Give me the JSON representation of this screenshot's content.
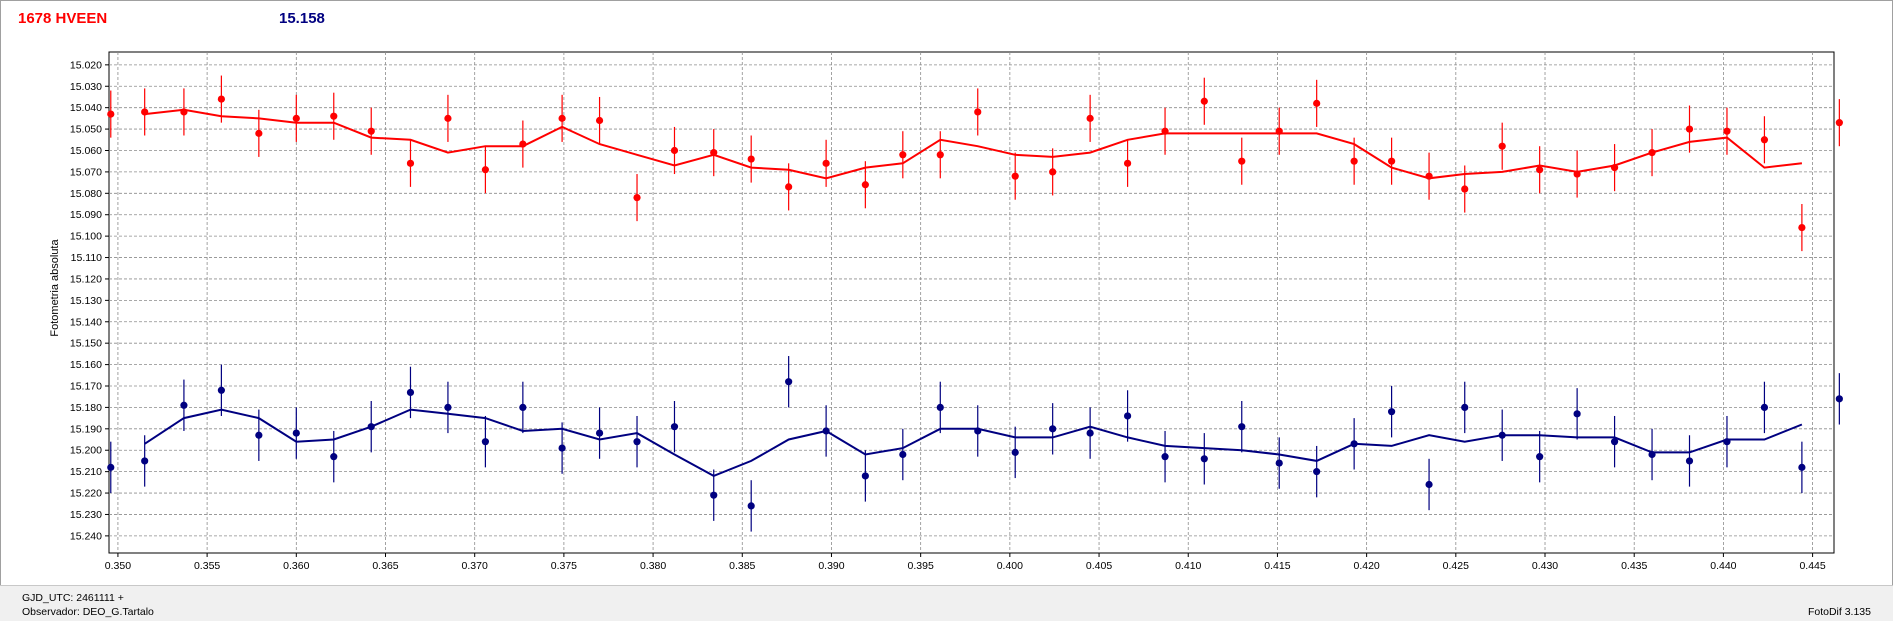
{
  "header": {
    "object_name": "1678 HVEEN",
    "magnitude": "15.158",
    "object_color": "#ff0000",
    "magnitude_color": "#000080"
  },
  "footer": {
    "gjd": "GJD_UTC: 2461111 +",
    "observer": "Observador: DEO_G.Tartalo",
    "software": "FotoDif 3.135"
  },
  "chart_data": {
    "type": "scatter",
    "title": "",
    "xlabel": "",
    "ylabel": "Fotometria absoluta",
    "xlim": [
      0.3495,
      0.4462
    ],
    "ylim": [
      15.014,
      15.248
    ],
    "y_inverted": true,
    "grid": true,
    "x_ticks": [
      "0.350",
      "0.355",
      "0.360",
      "0.365",
      "0.370",
      "0.375",
      "0.380",
      "0.385",
      "0.390",
      "0.395",
      "0.400",
      "0.405",
      "0.410",
      "0.415",
      "0.420",
      "0.425",
      "0.430",
      "0.435",
      "0.440",
      "0.445"
    ],
    "y_ticks": [
      "15.020",
      "15.030",
      "15.040",
      "15.050",
      "15.060",
      "15.070",
      "15.080",
      "15.090",
      "15.100",
      "15.110",
      "15.120",
      "15.130",
      "15.140",
      "15.150",
      "15.160",
      "15.170",
      "15.180",
      "15.190",
      "15.200",
      "15.210",
      "15.220",
      "15.230",
      "15.240"
    ],
    "series": [
      {
        "color": "#ff0000",
        "points": [
          [
            0.3496,
            15.043
          ],
          [
            0.3515,
            15.042
          ],
          [
            0.3537,
            15.042
          ],
          [
            0.3558,
            15.036
          ],
          [
            0.3579,
            15.052
          ],
          [
            0.36,
            15.045
          ],
          [
            0.3621,
            15.044
          ],
          [
            0.3642,
            15.051
          ],
          [
            0.3664,
            15.066
          ],
          [
            0.3685,
            15.045
          ],
          [
            0.3706,
            15.069
          ],
          [
            0.3727,
            15.057
          ],
          [
            0.3749,
            15.045
          ],
          [
            0.377,
            15.046
          ],
          [
            0.3791,
            15.082
          ],
          [
            0.3812,
            15.06
          ],
          [
            0.3834,
            15.061
          ],
          [
            0.3855,
            15.064
          ],
          [
            0.3876,
            15.077
          ],
          [
            0.3897,
            15.066
          ],
          [
            0.3919,
            15.076
          ],
          [
            0.394,
            15.062
          ],
          [
            0.3961,
            15.062
          ],
          [
            0.3982,
            15.042
          ],
          [
            0.4003,
            15.072
          ],
          [
            0.4024,
            15.07
          ],
          [
            0.4045,
            15.045
          ],
          [
            0.4066,
            15.066
          ],
          [
            0.4087,
            15.051
          ],
          [
            0.4109,
            15.037
          ],
          [
            0.413,
            15.065
          ],
          [
            0.4151,
            15.051
          ],
          [
            0.4172,
            15.038
          ],
          [
            0.4193,
            15.065
          ],
          [
            0.4214,
            15.065
          ],
          [
            0.4235,
            15.072
          ],
          [
            0.4255,
            15.078
          ],
          [
            0.4276,
            15.058
          ],
          [
            0.4297,
            15.069
          ],
          [
            0.4318,
            15.071
          ],
          [
            0.4339,
            15.068
          ],
          [
            0.436,
            15.061
          ],
          [
            0.4381,
            15.05
          ],
          [
            0.4402,
            15.051
          ],
          [
            0.4423,
            15.055
          ],
          [
            0.4444,
            15.096
          ],
          [
            0.4465,
            15.047
          ]
        ],
        "err": 0.011,
        "trend": [
          [
            0.3515,
            15.043
          ],
          [
            0.3537,
            15.041
          ],
          [
            0.3558,
            15.044
          ],
          [
            0.3579,
            15.045
          ],
          [
            0.36,
            15.047
          ],
          [
            0.3621,
            15.047
          ],
          [
            0.3642,
            15.054
          ],
          [
            0.3664,
            15.055
          ],
          [
            0.3685,
            15.061
          ],
          [
            0.3706,
            15.058
          ],
          [
            0.3727,
            15.058
          ],
          [
            0.3749,
            15.049
          ],
          [
            0.377,
            15.057
          ],
          [
            0.3791,
            15.062
          ],
          [
            0.3812,
            15.067
          ],
          [
            0.3834,
            15.062
          ],
          [
            0.3855,
            15.068
          ],
          [
            0.3876,
            15.069
          ],
          [
            0.3897,
            15.073
          ],
          [
            0.3919,
            15.068
          ],
          [
            0.394,
            15.066
          ],
          [
            0.3961,
            15.055
          ],
          [
            0.3982,
            15.058
          ],
          [
            0.4003,
            15.062
          ],
          [
            0.4024,
            15.063
          ],
          [
            0.4045,
            15.061
          ],
          [
            0.4066,
            15.055
          ],
          [
            0.4087,
            15.052
          ],
          [
            0.4109,
            15.052
          ],
          [
            0.413,
            15.052
          ],
          [
            0.4151,
            15.052
          ],
          [
            0.4172,
            15.052
          ],
          [
            0.4193,
            15.057
          ],
          [
            0.4214,
            15.068
          ],
          [
            0.4235,
            15.073
          ],
          [
            0.4255,
            15.071
          ],
          [
            0.4276,
            15.07
          ],
          [
            0.4297,
            15.067
          ],
          [
            0.4318,
            15.07
          ],
          [
            0.4339,
            15.067
          ],
          [
            0.436,
            15.061
          ],
          [
            0.4381,
            15.056
          ],
          [
            0.4402,
            15.054
          ],
          [
            0.4423,
            15.068
          ],
          [
            0.4444,
            15.066
          ]
        ]
      },
      {
        "color": "#000080",
        "points": [
          [
            0.3496,
            15.208
          ],
          [
            0.3515,
            15.205
          ],
          [
            0.3537,
            15.179
          ],
          [
            0.3558,
            15.172
          ],
          [
            0.3579,
            15.193
          ],
          [
            0.36,
            15.192
          ],
          [
            0.3621,
            15.203
          ],
          [
            0.3642,
            15.189
          ],
          [
            0.3664,
            15.173
          ],
          [
            0.3685,
            15.18
          ],
          [
            0.3706,
            15.196
          ],
          [
            0.3727,
            15.18
          ],
          [
            0.3749,
            15.199
          ],
          [
            0.377,
            15.192
          ],
          [
            0.3791,
            15.196
          ],
          [
            0.3812,
            15.189
          ],
          [
            0.3834,
            15.221
          ],
          [
            0.3855,
            15.226
          ],
          [
            0.3876,
            15.168
          ],
          [
            0.3897,
            15.191
          ],
          [
            0.3919,
            15.212
          ],
          [
            0.394,
            15.202
          ],
          [
            0.3961,
            15.18
          ],
          [
            0.3982,
            15.191
          ],
          [
            0.4003,
            15.201
          ],
          [
            0.4024,
            15.19
          ],
          [
            0.4045,
            15.192
          ],
          [
            0.4066,
            15.184
          ],
          [
            0.4087,
            15.203
          ],
          [
            0.4109,
            15.204
          ],
          [
            0.413,
            15.189
          ],
          [
            0.4151,
            15.206
          ],
          [
            0.4172,
            15.21
          ],
          [
            0.4193,
            15.197
          ],
          [
            0.4214,
            15.182
          ],
          [
            0.4235,
            15.216
          ],
          [
            0.4255,
            15.18
          ],
          [
            0.4276,
            15.193
          ],
          [
            0.4297,
            15.203
          ],
          [
            0.4318,
            15.183
          ],
          [
            0.4339,
            15.196
          ],
          [
            0.436,
            15.202
          ],
          [
            0.4381,
            15.205
          ],
          [
            0.4402,
            15.196
          ],
          [
            0.4423,
            15.18
          ],
          [
            0.4444,
            15.208
          ],
          [
            0.4465,
            15.176
          ]
        ],
        "err": 0.012,
        "trend": [
          [
            0.3515,
            15.197
          ],
          [
            0.3537,
            15.185
          ],
          [
            0.3558,
            15.181
          ],
          [
            0.3579,
            15.185
          ],
          [
            0.36,
            15.196
          ],
          [
            0.3621,
            15.195
          ],
          [
            0.3642,
            15.189
          ],
          [
            0.3664,
            15.181
          ],
          [
            0.3685,
            15.183
          ],
          [
            0.3706,
            15.185
          ],
          [
            0.3727,
            15.191
          ],
          [
            0.3749,
            15.19
          ],
          [
            0.377,
            15.195
          ],
          [
            0.3791,
            15.192
          ],
          [
            0.3812,
            15.202
          ],
          [
            0.3834,
            15.212
          ],
          [
            0.3855,
            15.205
          ],
          [
            0.3876,
            15.195
          ],
          [
            0.3897,
            15.191
          ],
          [
            0.3919,
            15.202
          ],
          [
            0.394,
            15.199
          ],
          [
            0.3961,
            15.19
          ],
          [
            0.3982,
            15.19
          ],
          [
            0.4003,
            15.194
          ],
          [
            0.4024,
            15.194
          ],
          [
            0.4045,
            15.189
          ],
          [
            0.4066,
            15.194
          ],
          [
            0.4087,
            15.198
          ],
          [
            0.4109,
            15.199
          ],
          [
            0.413,
            15.2
          ],
          [
            0.4151,
            15.202
          ],
          [
            0.4172,
            15.205
          ],
          [
            0.4193,
            15.197
          ],
          [
            0.4214,
            15.198
          ],
          [
            0.4235,
            15.193
          ],
          [
            0.4255,
            15.196
          ],
          [
            0.4276,
            15.193
          ],
          [
            0.4297,
            15.193
          ],
          [
            0.4318,
            15.194
          ],
          [
            0.4339,
            15.194
          ],
          [
            0.436,
            15.201
          ],
          [
            0.4381,
            15.201
          ],
          [
            0.4402,
            15.195
          ],
          [
            0.4423,
            15.195
          ],
          [
            0.4444,
            15.188
          ]
        ]
      }
    ]
  }
}
